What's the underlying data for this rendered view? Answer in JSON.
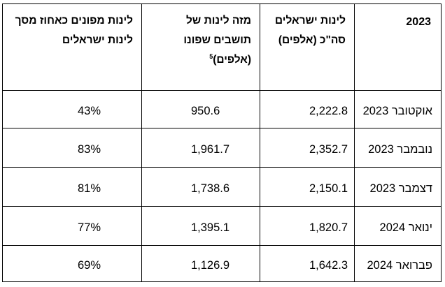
{
  "table": {
    "headers": {
      "year": "2023",
      "total_apartments": "לינות ישראלים סה\"כ (אלפים)",
      "evacuee_apartments": "מזה לינות של תושבים שפונו (אלפים)",
      "footnote_mark": "5",
      "evacuee_share": "לינות מפונים כאחוז מסך לינות ישראלים"
    },
    "rows": [
      {
        "month": "אוקטובר 2023",
        "total": "2,222.8",
        "evacuees": "950.6",
        "share": "43%"
      },
      {
        "month": "נובמבר 2023",
        "total": "2,352.7",
        "evacuees": "1,961.7",
        "share": "83%"
      },
      {
        "month": "דצמבר 2023",
        "total": "2,150.1",
        "evacuees": "1,738.6",
        "share": "81%"
      },
      {
        "month": "ינואר 2024",
        "total": "1,820.7",
        "evacuees": "1,395.1",
        "share": "77%"
      },
      {
        "month": "פברואר 2024",
        "total": "1,642.3",
        "evacuees": "1,126.9",
        "share": "69%"
      }
    ]
  }
}
